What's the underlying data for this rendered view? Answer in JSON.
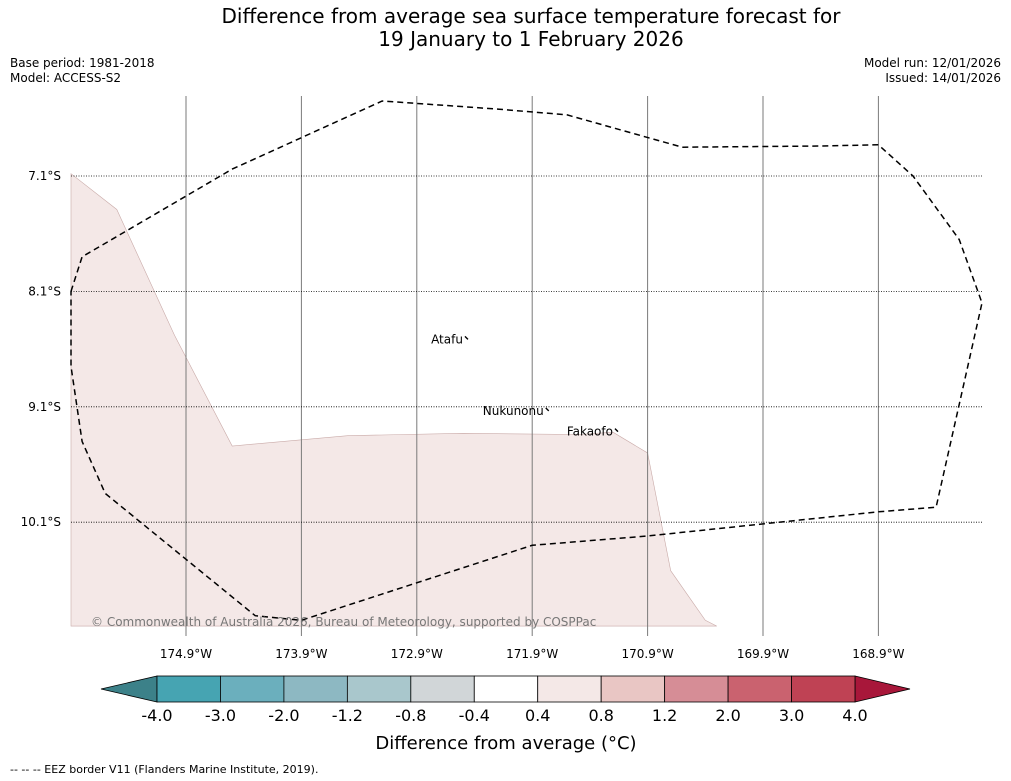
{
  "title": {
    "line1": "Difference from average sea surface temperature forecast for",
    "line2": "19 January to 1 February 2026"
  },
  "meta": {
    "base_period": "Base period: 1981-2018",
    "model": "Model: ACCESS-S2",
    "model_run": "Model run: 12/01/2026",
    "issued": "Issued: 14/01/2026"
  },
  "copyright": "© Commonwealth of Australia 2026, Bureau of Meteorology, supported by COSPPac",
  "footer": "--  --  -- EEZ border V11 (Flanders Marine Institute, 2019).",
  "colors": {
    "anomaly_fill": "#f4e8e7",
    "anomaly_edge": "#c9aaa8",
    "eez_border": "#000000",
    "grid": "#000000",
    "copyright": "#777777"
  },
  "chart_data": {
    "type": "map",
    "projection": "longitude-latitude",
    "lon_range": [
      -175.9,
      -167.8
    ],
    "lat_range": [
      -11.0,
      -6.4
    ],
    "lon_ticks": [
      {
        "value": -174.9,
        "label": "174.9°W"
      },
      {
        "value": -173.9,
        "label": "173.9°W"
      },
      {
        "value": -172.9,
        "label": "172.9°W"
      },
      {
        "value": -171.9,
        "label": "171.9°W"
      },
      {
        "value": -170.9,
        "label": "170.9°W"
      },
      {
        "value": -169.9,
        "label": "169.9°W"
      },
      {
        "value": -168.9,
        "label": "168.9°W"
      }
    ],
    "lat_ticks": [
      {
        "value": -7.1,
        "label": "7.1°S"
      },
      {
        "value": -8.1,
        "label": "8.1°S"
      },
      {
        "value": -9.1,
        "label": "9.1°S"
      },
      {
        "value": -10.1,
        "label": "10.1°S"
      }
    ],
    "anomaly_region": {
      "category": "0.4 to 0.8",
      "polygon": [
        [
          -175.9,
          -7.08
        ],
        [
          -175.5,
          -7.39
        ],
        [
          -175.0,
          -8.48
        ],
        [
          -174.5,
          -9.44
        ],
        [
          -173.5,
          -9.35
        ],
        [
          -172.5,
          -9.33
        ],
        [
          -171.5,
          -9.34
        ],
        [
          -171.2,
          -9.32
        ],
        [
          -170.9,
          -9.5
        ],
        [
          -170.7,
          -10.52
        ],
        [
          -170.4,
          -10.95
        ],
        [
          -170.3,
          -11.0
        ],
        [
          -175.9,
          -11.0
        ]
      ]
    },
    "eez_border": [
      [
        -175.9,
        -8.1
      ],
      [
        -175.8,
        -7.8
      ],
      [
        -174.5,
        -7.04
      ],
      [
        -173.2,
        -6.45
      ],
      [
        -172.2,
        -6.52
      ],
      [
        -171.6,
        -6.57
      ],
      [
        -170.6,
        -6.85
      ],
      [
        -169.4,
        -6.84
      ],
      [
        -168.9,
        -6.83
      ],
      [
        -168.6,
        -7.1
      ],
      [
        -168.2,
        -7.65
      ],
      [
        -167.9,
        -8.2
      ],
      [
        -168.2,
        -9.08
      ],
      [
        -168.4,
        -9.97
      ],
      [
        -168.9,
        -10.01
      ],
      [
        -170.9,
        -10.22
      ],
      [
        -171.9,
        -10.3
      ],
      [
        -173.9,
        -10.95
      ],
      [
        -174.3,
        -10.91
      ],
      [
        -175.6,
        -9.85
      ],
      [
        -175.8,
        -9.4
      ],
      [
        -175.9,
        -8.75
      ]
    ],
    "islands": [
      {
        "name": "Atafu",
        "lon": -172.5,
        "lat": -8.55
      },
      {
        "name": "Nukunonu",
        "lon": -171.8,
        "lat": -9.17
      },
      {
        "name": "Fakaofo",
        "lon": -171.2,
        "lat": -9.35
      }
    ],
    "colorbar": {
      "label": "Difference from average (°C)",
      "extend": "both",
      "ticks": [
        "-4.0",
        "-3.0",
        "-2.0",
        "-1.2",
        "-0.8",
        "-0.4",
        "0.4",
        "0.8",
        "1.2",
        "2.0",
        "3.0",
        "4.0"
      ],
      "under_color": "#3c8189",
      "over_color": "#a8173a",
      "colors": [
        "#46a4b2",
        "#6bafbd",
        "#8db8c2",
        "#a9c7cc",
        "#d1d6d8",
        "#ffffff",
        "#f4e8e7",
        "#e9c6c4",
        "#d68d96",
        "#ca626f",
        "#bf4254"
      ]
    }
  }
}
